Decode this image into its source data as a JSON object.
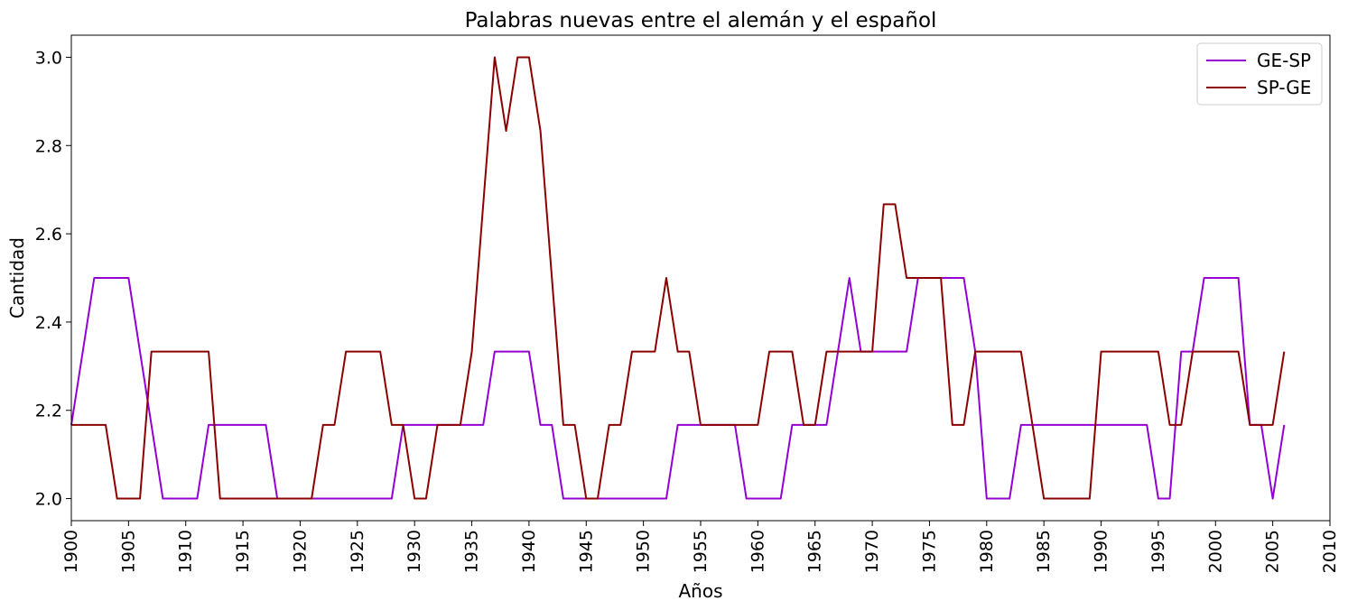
{
  "chart_data": {
    "type": "line",
    "title": "Palabras nuevas entre el alemán y el español",
    "xlabel": "Años",
    "ylabel": "Cantidad",
    "xlim": [
      1900,
      2010
    ],
    "ylim": [
      1.95,
      3.05
    ],
    "xticks": [
      1900,
      1905,
      1910,
      1915,
      1920,
      1925,
      1930,
      1935,
      1940,
      1945,
      1950,
      1955,
      1960,
      1965,
      1970,
      1975,
      1980,
      1985,
      1990,
      1995,
      2000,
      2005,
      2010
    ],
    "yticks": [
      "2.0",
      "2.2",
      "2.4",
      "2.6",
      "2.8",
      "3.0"
    ],
    "grid": false,
    "legend": "top-right",
    "x": [
      1900,
      1901,
      1902,
      1903,
      1904,
      1905,
      1906,
      1907,
      1908,
      1909,
      1910,
      1911,
      1912,
      1913,
      1914,
      1915,
      1916,
      1917,
      1918,
      1919,
      1920,
      1921,
      1922,
      1923,
      1924,
      1925,
      1926,
      1927,
      1928,
      1929,
      1930,
      1931,
      1932,
      1933,
      1934,
      1935,
      1936,
      1937,
      1938,
      1939,
      1940,
      1941,
      1942,
      1943,
      1944,
      1945,
      1946,
      1947,
      1948,
      1949,
      1950,
      1951,
      1952,
      1953,
      1954,
      1955,
      1956,
      1957,
      1958,
      1959,
      1960,
      1961,
      1962,
      1963,
      1964,
      1965,
      1966,
      1967,
      1968,
      1969,
      1970,
      1971,
      1972,
      1973,
      1974,
      1975,
      1976,
      1977,
      1978,
      1979,
      1980,
      1981,
      1982,
      1983,
      1984,
      1985,
      1986,
      1987,
      1988,
      1989,
      1990,
      1991,
      1992,
      1993,
      1994,
      1995,
      1996,
      1997,
      1998,
      1999,
      2000,
      2001,
      2002,
      2003,
      2004,
      2005,
      2006
    ],
    "series": [
      {
        "name": "GE-SP",
        "color": "#9400d3",
        "values": [
          2.167,
          2.333,
          2.5,
          2.5,
          2.5,
          2.5,
          2.333,
          2.167,
          2.0,
          2.0,
          2.0,
          2.0,
          2.167,
          2.167,
          2.167,
          2.167,
          2.167,
          2.167,
          2.0,
          2.0,
          2.0,
          2.0,
          2.0,
          2.0,
          2.0,
          2.0,
          2.0,
          2.0,
          2.0,
          2.167,
          2.167,
          2.167,
          2.167,
          2.167,
          2.167,
          2.167,
          2.167,
          2.333,
          2.333,
          2.333,
          2.333,
          2.167,
          2.167,
          2.0,
          2.0,
          2.0,
          2.0,
          2.0,
          2.0,
          2.0,
          2.0,
          2.0,
          2.0,
          2.167,
          2.167,
          2.167,
          2.167,
          2.167,
          2.167,
          2.0,
          2.0,
          2.0,
          2.0,
          2.167,
          2.167,
          2.167,
          2.167,
          2.333,
          2.5,
          2.333,
          2.333,
          2.333,
          2.333,
          2.333,
          2.5,
          2.5,
          2.5,
          2.5,
          2.5,
          2.333,
          2.0,
          2.0,
          2.0,
          2.167,
          2.167,
          2.167,
          2.167,
          2.167,
          2.167,
          2.167,
          2.167,
          2.167,
          2.167,
          2.167,
          2.167,
          2.0,
          2.0,
          2.333,
          2.333,
          2.5,
          2.5,
          2.5,
          2.5,
          2.167,
          2.167,
          2.0,
          2.167
        ]
      },
      {
        "name": "SP-GE",
        "color": "#8b0000",
        "values": [
          2.167,
          2.167,
          2.167,
          2.167,
          2.0,
          2.0,
          2.0,
          2.333,
          2.333,
          2.333,
          2.333,
          2.333,
          2.333,
          2.0,
          2.0,
          2.0,
          2.0,
          2.0,
          2.0,
          2.0,
          2.0,
          2.0,
          2.167,
          2.167,
          2.333,
          2.333,
          2.333,
          2.333,
          2.167,
          2.167,
          2.0,
          2.0,
          2.167,
          2.167,
          2.167,
          2.333,
          2.667,
          3.0,
          2.833,
          3.0,
          3.0,
          2.833,
          2.5,
          2.167,
          2.167,
          2.0,
          2.0,
          2.167,
          2.167,
          2.333,
          2.333,
          2.333,
          2.5,
          2.333,
          2.333,
          2.167,
          2.167,
          2.167,
          2.167,
          2.167,
          2.167,
          2.333,
          2.333,
          2.333,
          2.167,
          2.167,
          2.333,
          2.333,
          2.333,
          2.333,
          2.333,
          2.667,
          2.667,
          2.5,
          2.5,
          2.5,
          2.5,
          2.167,
          2.167,
          2.333,
          2.333,
          2.333,
          2.333,
          2.333,
          2.167,
          2.0,
          2.0,
          2.0,
          2.0,
          2.0,
          2.333,
          2.333,
          2.333,
          2.333,
          2.333,
          2.333,
          2.167,
          2.167,
          2.333,
          2.333,
          2.333,
          2.333,
          2.333,
          2.167,
          2.167,
          2.167,
          2.333
        ]
      }
    ]
  }
}
